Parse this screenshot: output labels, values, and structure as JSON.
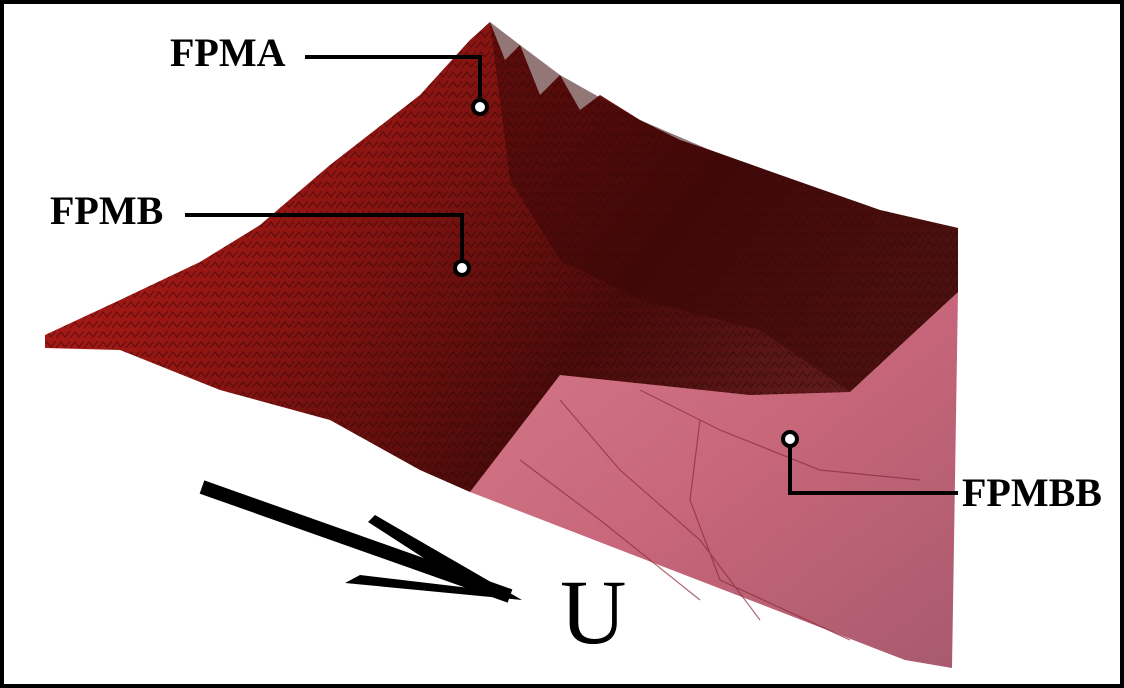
{
  "annotations": [
    "FPMA",
    "FPMB",
    "FPMBB"
  ],
  "arrow_label": "U"
}
